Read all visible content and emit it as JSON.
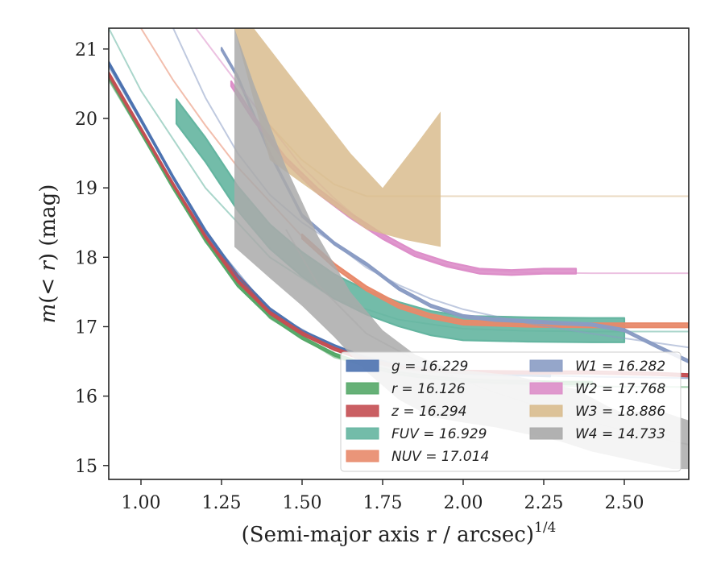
{
  "chart_data": {
    "type": "line",
    "xlabel": "(Semi-major axis r / arcsec)",
    "xlabel_sup": "1/4",
    "ylabel": "m(< r) (mag)",
    "xlim": [
      0.9,
      2.7
    ],
    "ylim": [
      21.3,
      14.8
    ],
    "y_inverted": true,
    "x_ticks": [
      1.0,
      1.25,
      1.5,
      1.75,
      2.0,
      2.25,
      2.5
    ],
    "x_tick_labels": [
      "1.00",
      "1.25",
      "1.50",
      "1.75",
      "2.00",
      "2.25",
      "2.50"
    ],
    "y_ticks": [
      15,
      16,
      17,
      18,
      19,
      20,
      21
    ],
    "y_tick_labels": [
      "15",
      "16",
      "17",
      "18",
      "19",
      "20",
      "21"
    ],
    "grid": false,
    "legend_position": "bottom-right",
    "series": [
      {
        "name": "g = 16.229",
        "color": "#4c72b0",
        "total": 16.229,
        "band": {
          "x": [
            0.9,
            1.0,
            1.1,
            1.2,
            1.3,
            1.4,
            1.5,
            1.6,
            1.7,
            1.8,
            1.9,
            2.0,
            2.1,
            2.2,
            2.27
          ],
          "y": [
            20.8,
            19.98,
            19.15,
            18.38,
            17.73,
            17.25,
            16.93,
            16.72,
            16.54,
            16.44,
            16.38,
            16.34,
            16.32,
            16.31,
            16.3
          ]
        },
        "model": {
          "x": [
            0.9,
            1.0,
            1.2,
            1.4,
            1.6,
            1.8,
            2.0,
            2.2,
            2.4,
            2.7
          ],
          "y": [
            20.75,
            19.95,
            18.35,
            17.22,
            16.7,
            16.45,
            16.35,
            16.3,
            16.28,
            16.26
          ]
        }
      },
      {
        "name": "r = 16.126",
        "color": "#55a868",
        "total": 16.126,
        "band": {
          "x": [
            0.9,
            1.0,
            1.1,
            1.2,
            1.3,
            1.4,
            1.5,
            1.6,
            1.7,
            1.8,
            1.9,
            2.0,
            2.1,
            2.2,
            2.3,
            2.4
          ],
          "y": [
            20.6,
            19.8,
            19.0,
            18.25,
            17.6,
            17.15,
            16.84,
            16.6,
            16.44,
            16.33,
            16.27,
            16.23,
            16.21,
            16.2,
            16.19,
            16.19
          ]
        },
        "model": {
          "x": [
            0.9,
            1.0,
            1.2,
            1.4,
            1.6,
            1.8,
            2.0,
            2.2,
            2.4,
            2.7
          ],
          "y": [
            20.55,
            19.78,
            18.22,
            17.12,
            16.56,
            16.3,
            16.2,
            16.16,
            16.14,
            16.13
          ]
        }
      },
      {
        "name": "z = 16.294",
        "color": "#c44e52",
        "total": 16.294,
        "band": {
          "x": [
            0.9,
            1.0,
            1.1,
            1.2,
            1.3,
            1.4,
            1.5,
            1.6,
            1.7,
            1.8,
            1.9,
            2.0,
            2.2,
            2.4,
            2.6,
            2.7
          ],
          "y": [
            20.65,
            19.85,
            19.05,
            18.3,
            17.66,
            17.2,
            16.9,
            16.68,
            16.52,
            16.42,
            16.37,
            16.35,
            16.34,
            16.34,
            16.32,
            16.3
          ]
        },
        "model": {
          "x": [
            0.9,
            1.0,
            1.2,
            1.4,
            1.6,
            1.8,
            2.0,
            2.2,
            2.4,
            2.7
          ],
          "y": [
            20.6,
            19.82,
            18.28,
            17.2,
            16.66,
            16.42,
            16.36,
            16.34,
            16.33,
            16.32
          ]
        }
      },
      {
        "name": "FUV = 16.929",
        "color": "#64b5a0",
        "total": 16.929,
        "band": {
          "x": [
            1.11,
            1.2,
            1.3,
            1.4,
            1.5,
            1.6,
            1.7,
            1.8,
            1.9,
            2.0,
            2.2,
            2.4,
            2.5
          ],
          "y": [
            20.1,
            19.55,
            18.85,
            18.3,
            17.9,
            17.58,
            17.35,
            17.18,
            17.05,
            16.98,
            16.96,
            16.95,
            16.95
          ],
          "width": 0.35
        },
        "model": {
          "x": [
            0.9,
            1.0,
            1.2,
            1.4,
            1.6,
            1.8,
            2.0,
            2.2,
            2.4,
            2.7
          ],
          "y": [
            21.3,
            20.4,
            19.0,
            18.0,
            17.4,
            17.1,
            16.97,
            16.94,
            16.93,
            16.93
          ]
        }
      },
      {
        "name": "NUV = 17.014",
        "color": "#e8896a",
        "total": 17.014,
        "band": {
          "x": [
            1.5,
            1.6,
            1.7,
            1.8,
            1.9,
            2.0,
            2.2,
            2.4,
            2.7
          ],
          "y": [
            18.3,
            17.88,
            17.55,
            17.3,
            17.15,
            17.06,
            17.03,
            17.02,
            17.02
          ],
          "width": 0.06
        },
        "model": {
          "x": [
            1.0,
            1.1,
            1.2,
            1.3,
            1.4,
            1.5,
            1.6,
            1.7,
            1.8,
            2.0,
            2.2,
            2.4,
            2.7
          ],
          "y": [
            21.3,
            20.55,
            19.9,
            19.3,
            18.8,
            18.3,
            17.9,
            17.55,
            17.3,
            17.06,
            17.03,
            17.02,
            17.02
          ]
        }
      },
      {
        "name": "W1 = 16.282",
        "color": "#8a9cc4",
        "total": 16.282,
        "band": {
          "x": [
            1.25,
            1.3,
            1.4,
            1.5,
            1.6,
            1.7,
            1.8,
            1.9,
            2.0,
            2.1,
            2.2,
            2.3,
            2.4,
            2.5,
            2.6,
            2.7
          ],
          "y": [
            21.0,
            20.6,
            19.5,
            18.6,
            18.2,
            17.9,
            17.55,
            17.3,
            17.15,
            17.1,
            17.08,
            17.05,
            17.03,
            16.95,
            16.72,
            16.5
          ]
        },
        "model": {
          "x": [
            1.1,
            1.2,
            1.3,
            1.4,
            1.5,
            1.6,
            1.7,
            1.8,
            1.9,
            2.0,
            2.2,
            2.4,
            2.7
          ],
          "y": [
            21.3,
            20.3,
            19.5,
            18.9,
            18.5,
            18.2,
            17.85,
            17.6,
            17.4,
            17.25,
            17.05,
            16.9,
            16.7
          ]
        }
      },
      {
        "name": "W2 = 17.768",
        "color": "#dd8ec9",
        "total": 17.768,
        "band": {
          "x": [
            1.28,
            1.35,
            1.45,
            1.55,
            1.65,
            1.75,
            1.85,
            1.95,
            2.05,
            2.15,
            2.25,
            2.35
          ],
          "y": [
            20.5,
            20.0,
            19.4,
            18.95,
            18.6,
            18.3,
            18.05,
            17.9,
            17.8,
            17.78,
            17.8,
            17.8
          ],
          "width": 0.07
        },
        "model": {
          "x": [
            1.17,
            1.3,
            1.4,
            1.5,
            1.6,
            1.7,
            1.8,
            1.9,
            2.0,
            2.2,
            2.4,
            2.7
          ],
          "y": [
            21.3,
            20.5,
            19.9,
            19.3,
            18.85,
            18.45,
            18.15,
            17.95,
            17.83,
            17.78,
            17.77,
            17.77
          ]
        }
      },
      {
        "name": "W3 = 18.886",
        "color": "#d9bc8e",
        "total": 18.886,
        "band_upper": {
          "x": [
            1.29,
            1.4,
            1.55,
            1.7,
            1.82,
            1.93
          ],
          "y": [
            21.3,
            19.4,
            18.9,
            18.4,
            18.25,
            18.15
          ]
        },
        "band_lower": {
          "x": [
            1.29,
            1.35,
            1.45,
            1.55,
            1.65,
            1.75,
            1.85,
            1.93
          ],
          "y": [
            21.3,
            21.3,
            20.7,
            20.1,
            19.5,
            19.0,
            19.6,
            20.1
          ]
        },
        "model": {
          "x": [
            1.4,
            1.5,
            1.6,
            1.7,
            2.0,
            2.4,
            2.7
          ],
          "y": [
            19.9,
            19.4,
            19.05,
            18.88,
            18.88,
            18.88,
            18.88
          ]
        }
      },
      {
        "name": "W4 = 14.733",
        "color": "#aaaaaa",
        "total": 14.733,
        "band_upper": {
          "x": [
            1.29,
            1.4,
            1.5,
            1.6,
            1.7,
            1.8,
            1.9,
            2.0,
            2.1,
            2.2,
            2.3,
            2.4,
            2.5,
            2.6,
            2.65,
            2.7
          ],
          "y": [
            18.15,
            17.7,
            17.3,
            16.85,
            16.35,
            15.95,
            15.7,
            15.62,
            15.55,
            15.45,
            15.35,
            15.2,
            15.1,
            15.0,
            14.95,
            14.95
          ]
        },
        "band_lower": {
          "x": [
            1.29,
            1.35,
            1.45,
            1.55,
            1.65,
            1.75,
            1.85,
            1.95,
            2.05,
            2.15,
            2.25,
            2.35,
            2.45,
            2.5,
            2.55,
            2.6,
            2.7
          ],
          "y": [
            21.3,
            20.5,
            19.3,
            18.3,
            17.5,
            16.95,
            16.6,
            16.4,
            16.35,
            16.3,
            16.2,
            16.1,
            15.85,
            15.75,
            15.78,
            15.8,
            15.65
          ]
        },
        "model": {
          "x": [
            1.45,
            1.55,
            1.7,
            1.9,
            2.1,
            2.3,
            2.5,
            2.7
          ],
          "y": [
            18.4,
            17.6,
            16.9,
            16.4,
            16.05,
            15.75,
            15.5,
            15.3
          ]
        }
      }
    ]
  }
}
